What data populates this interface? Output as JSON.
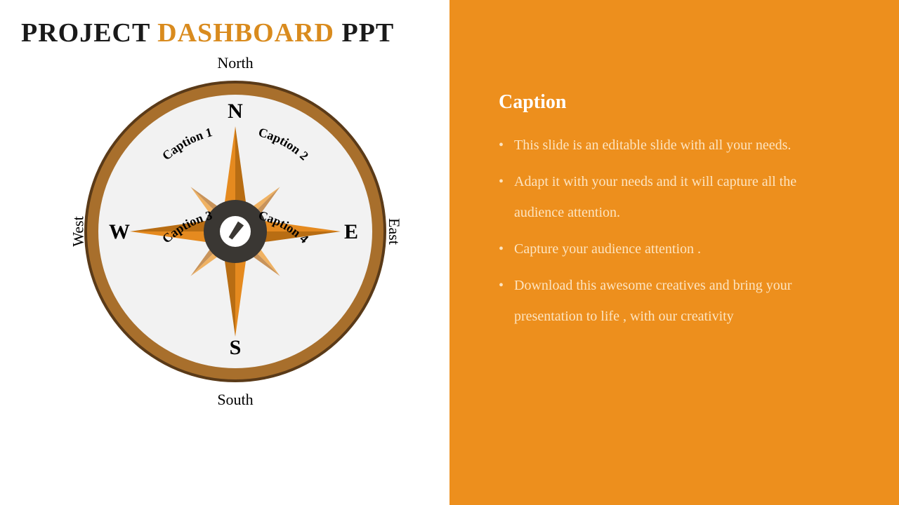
{
  "title": {
    "w1": "PROJECT",
    "w2": "DASHBOARD",
    "w3": "PPT"
  },
  "compass": {
    "outer_ring_dark": "#5a3a18",
    "outer_ring_light": "#a86f2c",
    "face_color": "#f2f2f2",
    "rose_primary": "#e58a1f",
    "rose_primary_dark": "#b86d13",
    "rose_secondary": "#f0b262",
    "rose_secondary_dark": "#c8935a",
    "hub_dark": "#3a3733",
    "hub_light": "#ffffff",
    "letter_color": "#000000",
    "letters": {
      "n": "N",
      "e": "E",
      "s": "S",
      "w": "W"
    },
    "dir_labels": {
      "north": "North",
      "south": "South",
      "east": "East",
      "west": "West"
    },
    "captions": {
      "c1": "Caption 1",
      "c2": "Caption 2",
      "c3": "Caption 3",
      "c4": "Caption 4"
    },
    "radius_outer": 215,
    "ring_width": 14,
    "face_radius": 195,
    "rose_long": 150,
    "rose_short": 90,
    "hub_outer_r": 45,
    "hub_inner_r": 22,
    "letter_fontsize": 30,
    "caption_fontsize": 18
  },
  "sidebar": {
    "bg": "#ed8f1d",
    "heading": "Caption",
    "bullets": [
      "This slide is an editable slide with all your needs.",
      "Adapt it with your needs and it will capture all the audience attention.",
      "Capture your audience attention .",
      "Download this awesome creatives and bring your presentation to life , with our creativity"
    ],
    "text_color": "#fde4c0",
    "heading_color": "#ffffff"
  }
}
